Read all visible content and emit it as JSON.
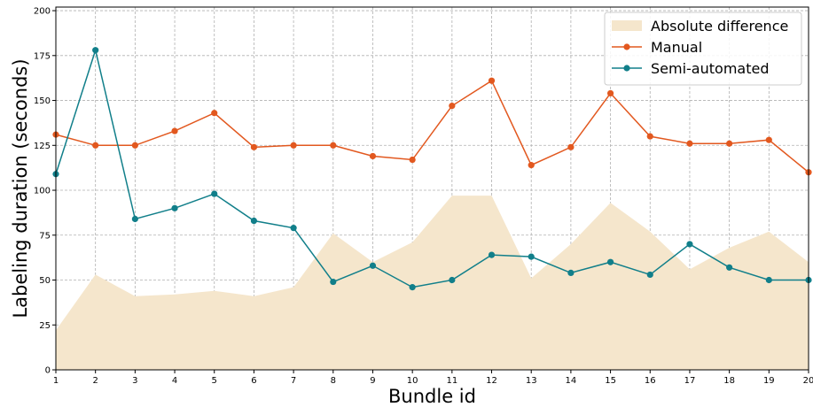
{
  "chart_data": {
    "type": "line",
    "xlabel": "Bundle id",
    "ylabel": "Labeling duration (seconds)",
    "xlim": [
      1,
      20
    ],
    "ylim": [
      0,
      202
    ],
    "grid": true,
    "legend_position": "top-right",
    "x": [
      1,
      2,
      3,
      4,
      5,
      6,
      7,
      8,
      9,
      10,
      11,
      12,
      13,
      14,
      15,
      16,
      17,
      18,
      19,
      20
    ],
    "x_ticks": [
      "1",
      "2",
      "3",
      "4",
      "5",
      "6",
      "7",
      "8",
      "9",
      "10",
      "11",
      "12",
      "13",
      "14",
      "15",
      "16",
      "17",
      "18",
      "19",
      "20"
    ],
    "y_ticks": [
      "0",
      "25",
      "50",
      "75",
      "100",
      "125",
      "150",
      "175",
      "200"
    ],
    "series": [
      {
        "name": "Absolute difference",
        "kind": "area",
        "color": "#f5e6cc",
        "values": [
          22,
          53,
          41,
          42,
          44,
          41,
          46,
          76,
          60,
          71,
          97,
          97,
          51,
          70,
          93,
          77,
          56,
          68,
          77,
          60
        ]
      },
      {
        "name": "Manual",
        "kind": "line",
        "color": "#e2581f",
        "values": [
          131,
          125,
          125,
          133,
          143,
          124,
          125,
          125,
          119,
          117,
          147,
          161,
          114,
          124,
          154,
          130,
          126,
          126,
          128,
          110
        ]
      },
      {
        "name": "Semi-automated",
        "kind": "line",
        "color": "#117f8a",
        "values": [
          109,
          178,
          84,
          90,
          98,
          83,
          79,
          49,
          58,
          46,
          50,
          64,
          63,
          54,
          60,
          53,
          70,
          57,
          50,
          50
        ]
      }
    ]
  }
}
